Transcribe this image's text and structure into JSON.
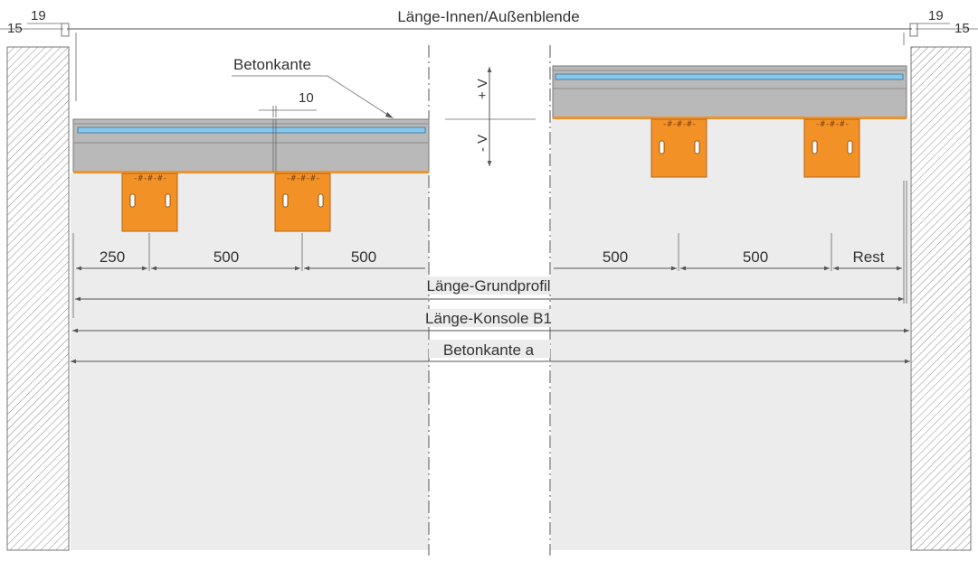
{
  "labels": {
    "top_title": "Länge-Innen/Außenblende",
    "left_15": "15",
    "left_19": "19",
    "right_19": "19",
    "right_15": "15",
    "betonkante_callout": "Betonkante",
    "gap_10": "10",
    "plus_v": "+ V",
    "minus_v": "- V",
    "dim_250": "250",
    "dim_500_a": "500",
    "dim_500_b": "500",
    "dim_500_c": "500",
    "dim_500_d": "500",
    "dim_rest": "Rest",
    "laenge_grundprofil": "Länge-Grundprofil",
    "laenge_konsole": "Länge-Konsole B1",
    "betonkante_a": "Betonkante a"
  },
  "colors": {
    "profile_gray": "#b9b9b9",
    "profile_edge": "#7a7a7a",
    "strip_blue": "#86c8ee",
    "bracket_orange": "#f29126",
    "concrete_light": "#ececec",
    "wall_hatch": "#9a9a9a"
  }
}
